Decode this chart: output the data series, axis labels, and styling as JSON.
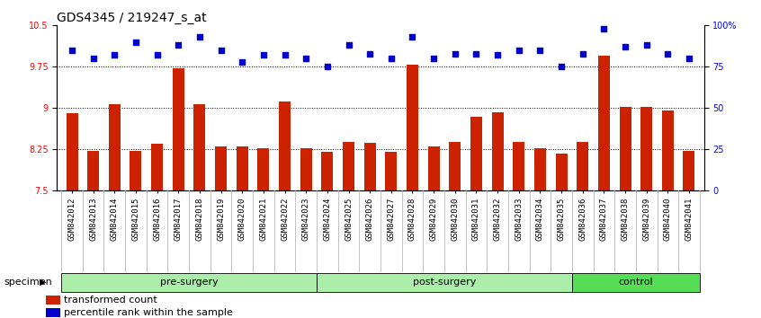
{
  "title": "GDS4345 / 219247_s_at",
  "samples": [
    "GSM842012",
    "GSM842013",
    "GSM842014",
    "GSM842015",
    "GSM842016",
    "GSM842017",
    "GSM842018",
    "GSM842019",
    "GSM842020",
    "GSM842021",
    "GSM842022",
    "GSM842023",
    "GSM842024",
    "GSM842025",
    "GSM842026",
    "GSM842027",
    "GSM842028",
    "GSM842029",
    "GSM842030",
    "GSM842031",
    "GSM842032",
    "GSM842033",
    "GSM842034",
    "GSM842035",
    "GSM842036",
    "GSM842037",
    "GSM842038",
    "GSM842039",
    "GSM842040",
    "GSM842041"
  ],
  "bar_values": [
    8.9,
    8.22,
    9.07,
    8.23,
    8.36,
    9.72,
    9.07,
    8.31,
    8.3,
    8.27,
    9.12,
    8.27,
    8.2,
    8.38,
    8.37,
    8.2,
    9.78,
    8.3,
    8.38,
    8.85,
    8.93,
    8.38,
    8.27,
    8.18,
    8.38,
    9.95,
    9.02,
    9.03,
    8.95,
    8.22
  ],
  "dot_values_pct": [
    85,
    80,
    82,
    90,
    82,
    88,
    93,
    85,
    78,
    82,
    82,
    80,
    75,
    88,
    83,
    80,
    93,
    80,
    83,
    83,
    82,
    85,
    85,
    75,
    83,
    98,
    87,
    88,
    83,
    80
  ],
  "ylim_left": [
    7.5,
    10.5
  ],
  "ylim_right": [
    0,
    100
  ],
  "yticks_left": [
    7.5,
    8.25,
    9.0,
    9.75,
    10.5
  ],
  "yticks_right": [
    0,
    25,
    50,
    75,
    100
  ],
  "bar_color": "#cc2200",
  "dot_color": "#0000cc",
  "group_ranges": [
    {
      "label": "pre-surgery",
      "start": 0,
      "end": 11,
      "color": "#aaeeaa"
    },
    {
      "label": "post-surgery",
      "start": 12,
      "end": 23,
      "color": "#aaeeaa"
    },
    {
      "label": "control",
      "start": 24,
      "end": 29,
      "color": "#55dd55"
    }
  ],
  "legend_bar_label": "transformed count",
  "legend_dot_label": "percentile rank within the sample",
  "specimen_label": "specimen",
  "grid_lines": [
    8.25,
    9.0,
    9.75
  ],
  "title_fontsize": 10,
  "tick_fontsize": 7,
  "xtick_fontsize": 6.5,
  "xticklabel_bg": "#cccccc",
  "chart_bg": "#ffffff",
  "bar_width": 0.55
}
